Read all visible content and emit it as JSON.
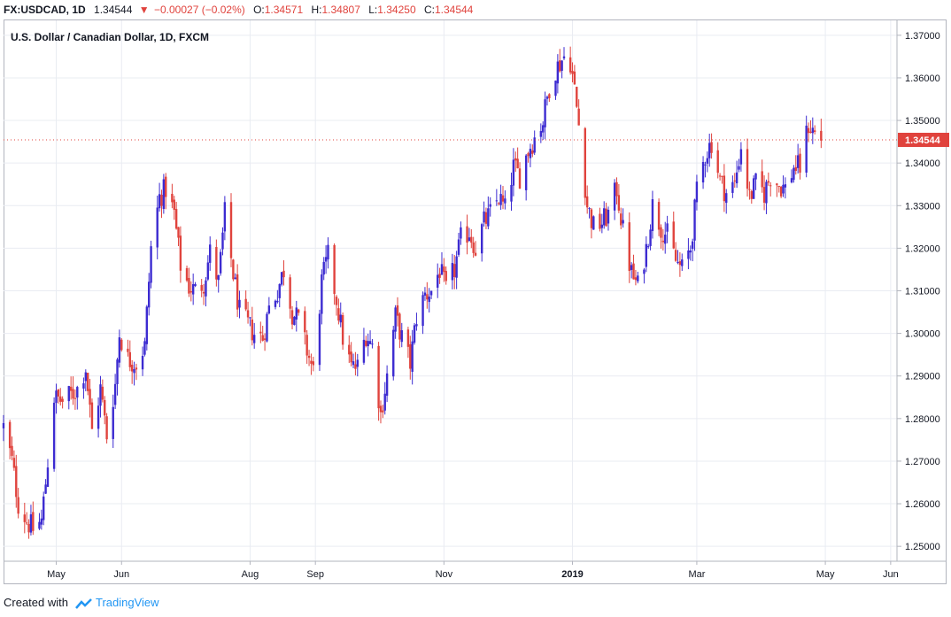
{
  "header": {
    "symbol": "FX:USDCAD, 1D",
    "last": "1.34544",
    "change": "−0.00027 (−0.02%)",
    "open_label": "O:",
    "open": "1.34571",
    "high_label": "H:",
    "high": "1.34807",
    "low_label": "L:",
    "low": "1.34250",
    "close_label": "C:",
    "close": "1.34544"
  },
  "footer": {
    "created_with": "Created with",
    "brand": "TradingView"
  },
  "colors": {
    "up": "#3c2bd1",
    "down": "#e0433d",
    "grid": "#e9ecf2",
    "axis": "#b2b5be",
    "text": "#131722"
  },
  "chart_data": {
    "type": "candlestick",
    "title": "U.S. Dollar / Canadian Dollar, 1D, FXCM",
    "ylim": [
      1.2465,
      1.3735
    ],
    "y_ticks": [
      "1.25000",
      "1.26000",
      "1.27000",
      "1.28000",
      "1.29000",
      "1.30000",
      "1.31000",
      "1.32000",
      "1.33000",
      "1.34000",
      "1.35000",
      "1.36000",
      "1.37000"
    ],
    "x_ticks": [
      {
        "label": "May",
        "date": "2018-05-01"
      },
      {
        "label": "Jun",
        "date": "2018-06-01"
      },
      {
        "label": "Aug",
        "date": "2018-08-01"
      },
      {
        "label": "Sep",
        "date": "2018-09-01"
      },
      {
        "label": "Nov",
        "date": "2018-11-01"
      },
      {
        "label": "2019",
        "date": "2019-01-01"
      },
      {
        "label": "Mar",
        "date": "2019-03-01"
      },
      {
        "label": "May",
        "date": "2019-05-01"
      },
      {
        "label": "Jun",
        "date": "2019-06-01"
      }
    ],
    "x_start": "2018-04-06",
    "x_end": "2019-06-04",
    "last_price_label": "1.34544",
    "grid": true,
    "anchors": [
      [
        "2018-04-06",
        1.278
      ],
      [
        "2018-04-10",
        1.27
      ],
      [
        "2018-04-13",
        1.26
      ],
      [
        "2018-04-17",
        1.256
      ],
      [
        "2018-04-20",
        1.254
      ],
      [
        "2018-04-24",
        1.256
      ],
      [
        "2018-04-26",
        1.265
      ],
      [
        "2018-04-30",
        1.285
      ],
      [
        "2018-05-04",
        1.284
      ],
      [
        "2018-05-09",
        1.286
      ],
      [
        "2018-05-11",
        1.287
      ],
      [
        "2018-05-15",
        1.292
      ],
      [
        "2018-05-18",
        1.277
      ],
      [
        "2018-05-22",
        1.287
      ],
      [
        "2018-05-25",
        1.276
      ],
      [
        "2018-05-29",
        1.288
      ],
      [
        "2018-05-31",
        1.3
      ],
      [
        "2018-06-04",
        1.294
      ],
      [
        "2018-06-08",
        1.293
      ],
      [
        "2018-06-12",
        1.297
      ],
      [
        "2018-06-15",
        1.32
      ],
      [
        "2018-06-19",
        1.332
      ],
      [
        "2018-06-22",
        1.334
      ],
      [
        "2018-06-26",
        1.328
      ],
      [
        "2018-06-29",
        1.316
      ],
      [
        "2018-07-03",
        1.311
      ],
      [
        "2018-07-06",
        1.31
      ],
      [
        "2018-07-10",
        1.312
      ],
      [
        "2018-07-13",
        1.319
      ],
      [
        "2018-07-17",
        1.312
      ],
      [
        "2018-07-20",
        1.328
      ],
      [
        "2018-07-24",
        1.314
      ],
      [
        "2018-07-27",
        1.305
      ],
      [
        "2018-07-31",
        1.302
      ],
      [
        "2018-08-03",
        1.3
      ],
      [
        "2018-08-07",
        1.299
      ],
      [
        "2018-08-10",
        1.306
      ],
      [
        "2018-08-14",
        1.31
      ],
      [
        "2018-08-17",
        1.315
      ],
      [
        "2018-08-21",
        1.305
      ],
      [
        "2018-08-24",
        1.303
      ],
      [
        "2018-08-28",
        1.296
      ],
      [
        "2018-08-31",
        1.291
      ],
      [
        "2018-09-04",
        1.312
      ],
      [
        "2018-09-07",
        1.318
      ],
      [
        "2018-09-11",
        1.308
      ],
      [
        "2018-09-14",
        1.299
      ],
      [
        "2018-09-18",
        1.292
      ],
      [
        "2018-09-21",
        1.292
      ],
      [
        "2018-09-25",
        1.3
      ],
      [
        "2018-09-28",
        1.297
      ],
      [
        "2018-10-02",
        1.281
      ],
      [
        "2018-10-05",
        1.29
      ],
      [
        "2018-10-09",
        1.304
      ],
      [
        "2018-10-12",
        1.299
      ],
      [
        "2018-10-16",
        1.293
      ],
      [
        "2018-10-19",
        1.304
      ],
      [
        "2018-10-23",
        1.309
      ],
      [
        "2018-10-26",
        1.31
      ],
      [
        "2018-10-30",
        1.315
      ],
      [
        "2018-11-02",
        1.31
      ],
      [
        "2018-11-06",
        1.315
      ],
      [
        "2018-11-09",
        1.322
      ],
      [
        "2018-11-13",
        1.324
      ],
      [
        "2018-11-16",
        1.32
      ],
      [
        "2018-11-20",
        1.326
      ],
      [
        "2018-11-23",
        1.328
      ],
      [
        "2018-11-27",
        1.332
      ],
      [
        "2018-11-30",
        1.329
      ],
      [
        "2018-12-04",
        1.339
      ],
      [
        "2018-12-07",
        1.337
      ],
      [
        "2018-12-11",
        1.343
      ],
      [
        "2018-12-14",
        1.346
      ],
      [
        "2018-12-18",
        1.35
      ],
      [
        "2018-12-21",
        1.358
      ],
      [
        "2018-12-24",
        1.362
      ],
      [
        "2018-12-28",
        1.365
      ],
      [
        "2018-12-31",
        1.364
      ],
      [
        "2019-01-02",
        1.357
      ],
      [
        "2019-01-04",
        1.349
      ],
      [
        "2019-01-08",
        1.33
      ],
      [
        "2019-01-11",
        1.325
      ],
      [
        "2019-01-15",
        1.326
      ],
      [
        "2019-01-18",
        1.328
      ],
      [
        "2019-01-22",
        1.334
      ],
      [
        "2019-01-25",
        1.324
      ],
      [
        "2019-01-29",
        1.314
      ],
      [
        "2019-02-01",
        1.311
      ],
      [
        "2019-02-05",
        1.32
      ],
      [
        "2019-02-08",
        1.33
      ],
      [
        "2019-02-12",
        1.325
      ],
      [
        "2019-02-15",
        1.323
      ],
      [
        "2019-02-19",
        1.317
      ],
      [
        "2019-02-22",
        1.315
      ],
      [
        "2019-02-26",
        1.32
      ],
      [
        "2019-03-01",
        1.333
      ],
      [
        "2019-03-05",
        1.342
      ],
      [
        "2019-03-08",
        1.345
      ],
      [
        "2019-03-12",
        1.336
      ],
      [
        "2019-03-15",
        1.333
      ],
      [
        "2019-03-19",
        1.335
      ],
      [
        "2019-03-22",
        1.344
      ],
      [
        "2019-03-26",
        1.332
      ],
      [
        "2019-03-29",
        1.335
      ],
      [
        "2019-04-02",
        1.333
      ],
      [
        "2019-04-05",
        1.337
      ],
      [
        "2019-04-09",
        1.335
      ],
      [
        "2019-04-12",
        1.334
      ],
      [
        "2019-04-16",
        1.339
      ],
      [
        "2019-04-19",
        1.339
      ],
      [
        "2019-04-23",
        1.349
      ],
      [
        "2019-04-26",
        1.347
      ],
      [
        "2019-04-29",
        1.3456
      ]
    ]
  }
}
